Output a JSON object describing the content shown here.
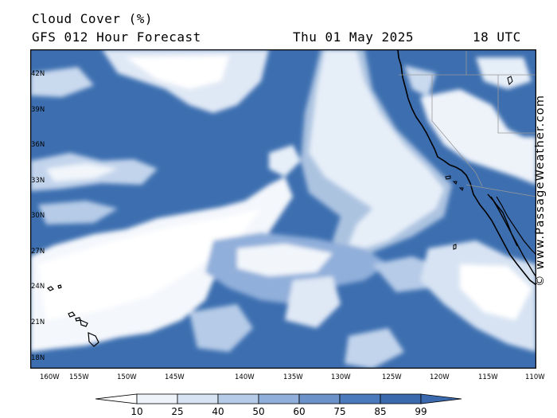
{
  "header": {
    "title": "Cloud Cover (%)",
    "subtitle": "GFS 012 Hour Forecast",
    "date": "Thu 01 May 2025",
    "time": "18 UTC"
  },
  "map": {
    "lat_labels": [
      "42N",
      "39N",
      "36N",
      "33N",
      "30N",
      "27N",
      "24N",
      "21N",
      "18N"
    ],
    "lon_labels": [
      "160W",
      "155W",
      "150W",
      "145W",
      "140W",
      "135W",
      "130W",
      "125W",
      "120W",
      "115W",
      "110W"
    ],
    "ocean_color": "#3d6fb0",
    "land_outline_color": "#000000",
    "border_color": "#999999"
  },
  "watermark": "© www.PassageWeather.com",
  "legend": {
    "labels": [
      "10",
      "25",
      "40",
      "50",
      "60",
      "75",
      "85",
      "99"
    ],
    "colors": [
      "#ffffff",
      "#eef3fa",
      "#d7e3f3",
      "#b5cbe7",
      "#90afda",
      "#6b92c9",
      "#4a7abb",
      "#3a69ad"
    ]
  }
}
